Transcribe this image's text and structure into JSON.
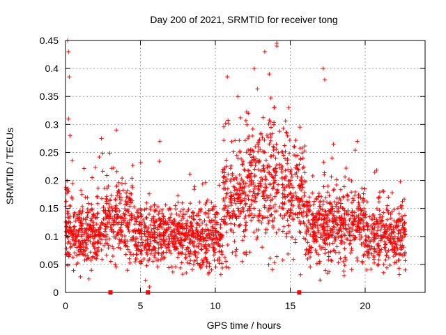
{
  "chart_data": {
    "type": "scatter",
    "title": "Day 200 of 2021, SRMTID for receiver tong",
    "xlabel": "GPS time / hours",
    "ylabel": "SRMTID / TECUs",
    "xlim": [
      0,
      24
    ],
    "ylim": [
      0,
      0.45
    ],
    "xticks": [
      0,
      5,
      10,
      15,
      20
    ],
    "xtick_labels": [
      "0",
      "5",
      "10",
      "15",
      "20"
    ],
    "yticks": [
      0,
      0.05,
      0.1,
      0.15,
      0.2,
      0.25,
      0.3,
      0.35,
      0.4,
      0.45
    ],
    "ytick_labels": [
      "0",
      "0.05",
      "0.1",
      "0.15",
      "0.2",
      "0.25",
      "0.3",
      "0.35",
      "0.4",
      "0.45"
    ],
    "grid": true,
    "marker": "+",
    "color": "#ff0000",
    "data_x_range": [
      0,
      22.7
    ],
    "gap_markers_x": [
      3.0,
      5.5,
      15.6
    ],
    "highlight_points": [
      {
        "x": 0.15,
        "y": 0.45
      },
      {
        "x": 0.2,
        "y": 0.43
      },
      {
        "x": 0.25,
        "y": 0.385
      },
      {
        "x": 0.2,
        "y": 0.31
      },
      {
        "x": 0.3,
        "y": 0.28
      },
      {
        "x": 14.1,
        "y": 0.445
      },
      {
        "x": 14.1,
        "y": 0.44
      },
      {
        "x": 13.3,
        "y": 0.43
      },
      {
        "x": 17.2,
        "y": 0.4
      },
      {
        "x": 12.6,
        "y": 0.4
      },
      {
        "x": 17.3,
        "y": 0.38
      },
      {
        "x": 13.6,
        "y": 0.39
      },
      {
        "x": 10.8,
        "y": 0.385
      },
      {
        "x": 11.5,
        "y": 0.35
      },
      {
        "x": 12.2,
        "y": 0.32
      },
      {
        "x": 14.9,
        "y": 0.33
      },
      {
        "x": 3.4,
        "y": 0.29
      },
      {
        "x": 6.3,
        "y": 0.27
      },
      {
        "x": 2.4,
        "y": 0.275
      },
      {
        "x": 5.6,
        "y": 0.01
      },
      {
        "x": 18.6,
        "y": 0.03
      },
      {
        "x": 20.1,
        "y": 0.04
      }
    ]
  }
}
